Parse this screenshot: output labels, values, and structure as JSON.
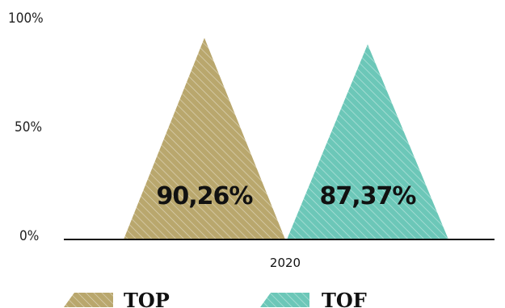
{
  "chart_data": {
    "type": "bar",
    "shape": "triangle",
    "categories": [
      "2020"
    ],
    "series": [
      {
        "name": "TOP",
        "values": [
          90.26
        ],
        "label": "90,26%",
        "color": "#b9a76d"
      },
      {
        "name": "TOF",
        "values": [
          87.37
        ],
        "label": "87,37%",
        "color": "#6cc7b8"
      }
    ],
    "ylim": [
      0,
      100
    ],
    "yticks": [
      "0%",
      "50%",
      "100%"
    ],
    "grid": false,
    "legend": "bottom-left",
    "pattern": "diagonal-hatch"
  }
}
